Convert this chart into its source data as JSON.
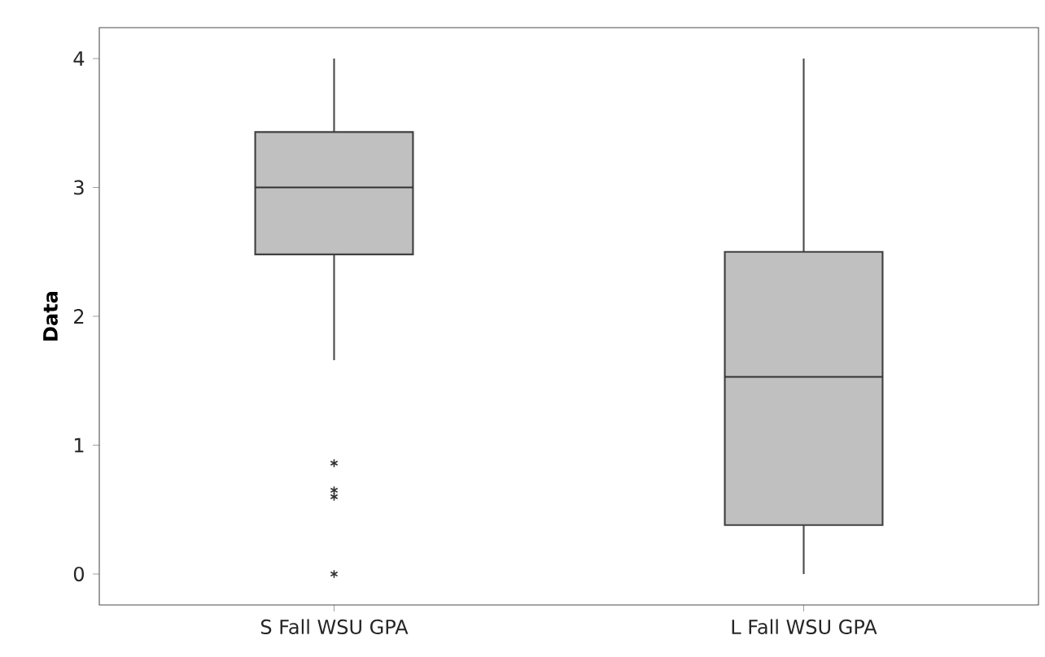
{
  "chart_data": {
    "type": "box",
    "ylabel": "**Data**",
    "categories": [
      "S Fall WSU GPA",
      "L Fall WSU GPA"
    ],
    "color": "#c0c0c0",
    "boxes": [
      {
        "low": 1.66,
        "q1": 2.48,
        "median": 3.0,
        "q3": 3.43,
        "high": 4,
        "outliers": [
          0.86,
          0.65,
          0.6,
          0
        ]
      },
      {
        "low": 0,
        "q1": 0.38,
        "median": 1.53,
        "q3": 2.5,
        "high": 4
      }
    ],
    "ylim": [
      -0.24,
      4.24
    ],
    "yticks": [
      0,
      1,
      2,
      3,
      4
    ]
  }
}
